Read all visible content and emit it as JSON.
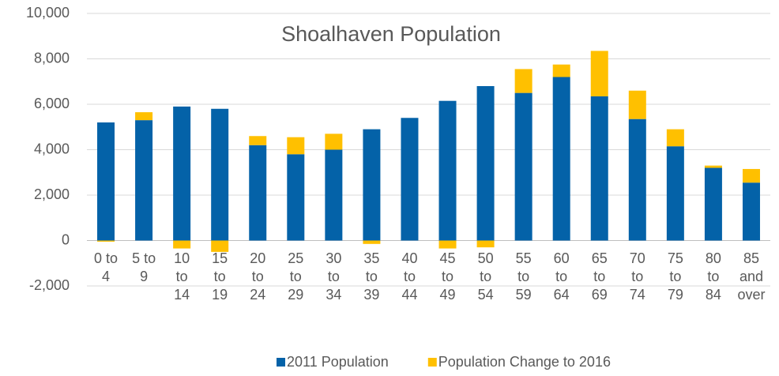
{
  "chart_data": {
    "type": "stacked_bar",
    "title": "Shoalhaven Population",
    "categories": [
      "0 to 4",
      "5 to 9",
      "10 to 14",
      "15 to 19",
      "20 to 24",
      "25 to 29",
      "30 to 34",
      "35 to 39",
      "40 to 44",
      "45 to 49",
      "50 to 54",
      "55 to 59",
      "60 to 64",
      "65 to 69",
      "70 to 74",
      "75 to 79",
      "80 to 84",
      "85 and over"
    ],
    "series": [
      {
        "name": "2011 Population",
        "color": "#0462a8",
        "values": [
          5200,
          5300,
          5900,
          5800,
          4200,
          3800,
          4000,
          4900,
          5400,
          6150,
          6800,
          6500,
          7200,
          6350,
          5350,
          4150,
          3200,
          2550
        ]
      },
      {
        "name": "Population Change to 2016",
        "color": "#ffc000",
        "values": [
          -50,
          350,
          -350,
          -500,
          400,
          750,
          700,
          -150,
          0,
          -350,
          -300,
          1050,
          550,
          2000,
          1250,
          750,
          100,
          600
        ]
      }
    ],
    "ylim": [
      -2000,
      10000
    ],
    "yticks": [
      {
        "value": -2000,
        "label": "-2,000"
      },
      0,
      {
        "value": 2000,
        "label": "2,000"
      },
      {
        "value": 4000,
        "label": "4,000"
      },
      {
        "value": 6000,
        "label": "6,000"
      },
      {
        "value": 8000,
        "label": "8,000"
      },
      {
        "value": 10000,
        "label": "10,000"
      }
    ],
    "grid": true,
    "legend": "bottom"
  }
}
